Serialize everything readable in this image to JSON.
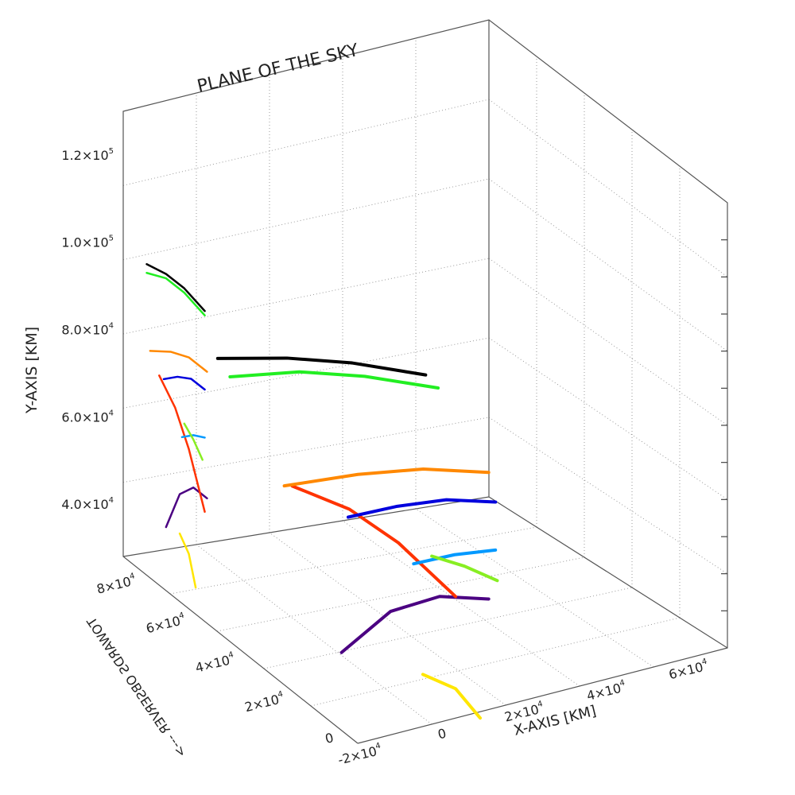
{
  "chart_data": {
    "type": "line",
    "projection": "3d",
    "title": "PLANE OF THE SKY",
    "xlabel": "X-AXIS [KM]",
    "ylabel": "Y-AXIS [KM]",
    "zlabel": "TOWARDS OBSERVER  --->",
    "x_ticks": [
      {
        "value": -20000,
        "base": "-2",
        "exp": "4"
      },
      {
        "value": 0,
        "base": "0",
        "exp": ""
      },
      {
        "value": 20000,
        "base": "2",
        "exp": "4"
      },
      {
        "value": 40000,
        "base": "4",
        "exp": "4"
      },
      {
        "value": 60000,
        "base": "6",
        "exp": "4"
      }
    ],
    "y_ticks": [
      {
        "value": 40000,
        "base": "4.0",
        "exp": "4"
      },
      {
        "value": 60000,
        "base": "6.0",
        "exp": "4"
      },
      {
        "value": 80000,
        "base": "8.0",
        "exp": "4"
      },
      {
        "value": 100000,
        "base": "1.0",
        "exp": "5"
      },
      {
        "value": 120000,
        "base": "1.2",
        "exp": "5"
      }
    ],
    "z_ticks": [
      {
        "value": 0,
        "base": "0",
        "exp": ""
      },
      {
        "value": 20000,
        "base": "2",
        "exp": "4"
      },
      {
        "value": 40000,
        "base": "4",
        "exp": "4"
      },
      {
        "value": 60000,
        "base": "6",
        "exp": "4"
      },
      {
        "value": 80000,
        "base": "8",
        "exp": "4"
      }
    ],
    "grid": true,
    "colors": {
      "black": "#000000",
      "green": "#22ee22",
      "orange": "#ff8800",
      "blue": "#0000dd",
      "light_green": "#88ee22",
      "sky_blue": "#0099ff",
      "red": "#ff3300",
      "purple": "#4b0082",
      "yellow": "#ffe600"
    },
    "series": [
      {
        "color": "#4b0082",
        "points": [
          [
            38000,
            30000,
            38000
          ],
          [
            26000,
            33000,
            38000
          ],
          [
            14000,
            32000,
            38000
          ],
          [
            2000,
            25000,
            38000
          ]
        ]
      },
      {
        "color": "#ffe600",
        "points": [
          [
            14000,
            23000,
            25000
          ],
          [
            22000,
            18000,
            25000
          ],
          [
            28000,
            10000,
            25000
          ]
        ]
      },
      {
        "color": "#ff3300",
        "points": [
          [
            -4000,
            60000,
            48000
          ],
          [
            10000,
            52000,
            48000
          ],
          [
            22000,
            42000,
            48000
          ],
          [
            36000,
            27000,
            48000
          ]
        ]
      },
      {
        "color": "#0099ff",
        "points": [
          [
            16000,
            45000,
            32000
          ],
          [
            26000,
            45000,
            32000
          ],
          [
            36000,
            44000,
            32000
          ]
        ]
      },
      {
        "color": "#88ee22",
        "points": [
          [
            18000,
            48000,
            28000
          ],
          [
            26000,
            44000,
            28000
          ],
          [
            34000,
            39000,
            28000
          ]
        ]
      },
      {
        "color": "#0000dd",
        "points": [
          [
            0,
            59000,
            32000
          ],
          [
            12000,
            59000,
            32000
          ],
          [
            24000,
            58000,
            32000
          ],
          [
            36000,
            55000,
            32000
          ]
        ]
      },
      {
        "color": "#ff8800",
        "points": [
          [
            -12000,
            66000,
            38000
          ],
          [
            6000,
            65000,
            38000
          ],
          [
            22000,
            63000,
            38000
          ],
          [
            38000,
            59000,
            38000
          ]
        ]
      },
      {
        "color": "#22ee22",
        "points": [
          [
            -15000,
            84000,
            55000
          ],
          [
            2000,
            82000,
            55000
          ],
          [
            18000,
            78000,
            55000
          ],
          [
            36000,
            72000,
            55000
          ]
        ]
      },
      {
        "color": "#000000",
        "points": [
          [
            -15000,
            86000,
            60000
          ],
          [
            2000,
            83000,
            60000
          ],
          [
            18000,
            79000,
            60000
          ],
          [
            36000,
            73000,
            60000
          ]
        ]
      }
    ]
  }
}
